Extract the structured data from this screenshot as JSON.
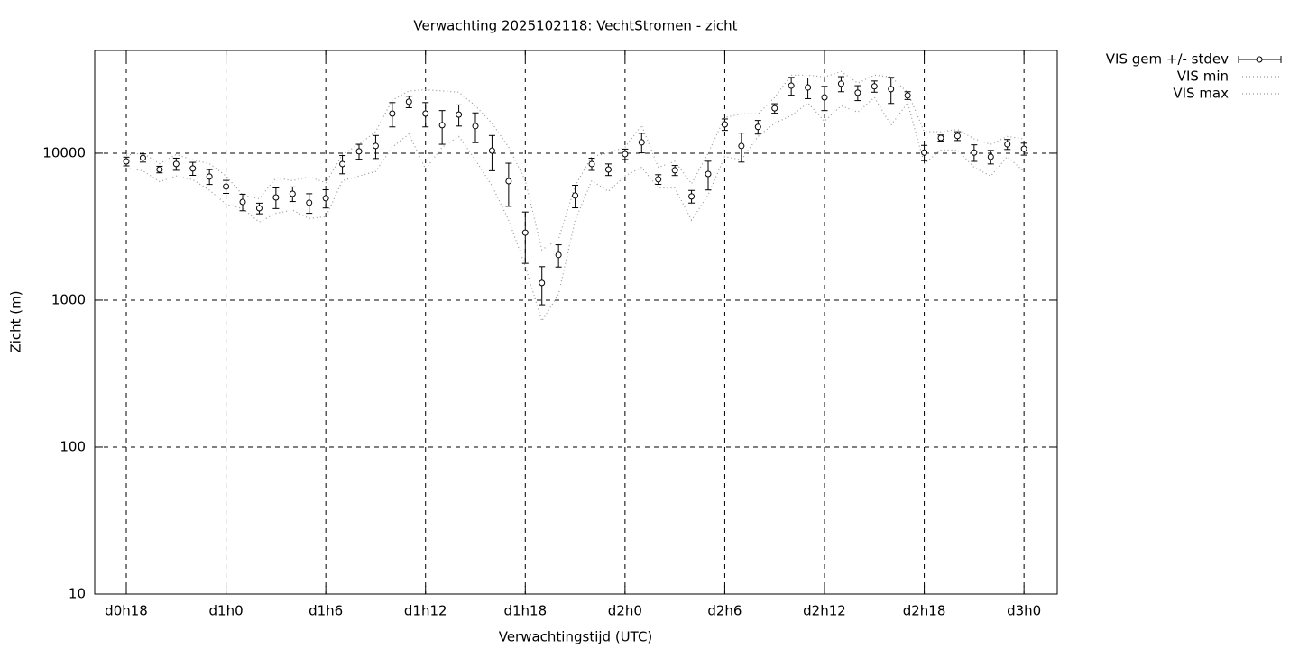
{
  "chart_data": {
    "type": "errorbar",
    "title": "Verwachting 2025102118: VechtStromen - zicht",
    "xlabel": "Verwachtingstijd (UTC)",
    "ylabel": "Zicht (m)",
    "x": [
      18,
      19,
      20,
      21,
      22,
      23,
      24,
      25,
      26,
      27,
      28,
      29,
      30,
      31,
      32,
      33,
      34,
      35,
      36,
      37,
      38,
      39,
      40,
      41,
      42,
      43,
      44,
      45,
      46,
      47,
      48,
      49,
      50,
      51,
      52,
      53,
      54,
      55,
      56,
      57,
      58,
      59,
      60,
      61,
      62,
      63,
      64,
      65,
      66,
      67,
      68,
      69,
      70,
      71,
      72
    ],
    "series": [
      {
        "name": "VIS gem +/- stdev",
        "color": "#000000",
        "values": [
          8800,
          9300,
          7750,
          8450,
          7870,
          6930,
          5930,
          4660,
          4220,
          5000,
          5290,
          4600,
          4940,
          8440,
          10300,
          11200,
          18600,
          22400,
          18600,
          15500,
          18300,
          15300,
          10400,
          6450,
          2880,
          1310,
          2030,
          5150,
          8440,
          7750,
          9860,
          11850,
          6640,
          7650,
          5080,
          7220,
          15700,
          11200,
          15100,
          20200,
          28800,
          28000,
          24000,
          29700,
          25800,
          28500,
          27300,
          24700,
          10100,
          12700,
          13100,
          10100,
          9450,
          11500,
          10700
        ],
        "errors": [
          600,
          600,
          400,
          800,
          800,
          800,
          600,
          600,
          350,
          800,
          600,
          700,
          700,
          1200,
          1200,
          2000,
          3500,
          2000,
          3500,
          4000,
          3000,
          3500,
          2800,
          2100,
          1100,
          380,
          350,
          900,
          800,
          700,
          800,
          1800,
          500,
          600,
          500,
          1600,
          1400,
          2500,
          1600,
          1500,
          4000,
          4500,
          4500,
          3500,
          3000,
          2500,
          5500,
          1500,
          1200,
          600,
          900,
          1300,
          1000,
          900,
          1000
        ]
      },
      {
        "name": "VIS min",
        "color": "#999999",
        "values": [
          7900,
          7600,
          6400,
          7000,
          6600,
          5600,
          4500,
          4200,
          3400,
          3900,
          4100,
          3600,
          3700,
          6500,
          7000,
          7500,
          11000,
          13500,
          7800,
          11000,
          13000,
          9000,
          6000,
          3500,
          1700,
          720,
          1100,
          3500,
          6500,
          5500,
          7000,
          8000,
          5800,
          5800,
          3500,
          5200,
          9500,
          9000,
          13000,
          16000,
          18000,
          22000,
          16500,
          21000,
          19000,
          24000,
          15500,
          22000,
          8500,
          10500,
          10500,
          8000,
          7000,
          9500,
          7500
        ]
      },
      {
        "name": "VIS max",
        "color": "#999999",
        "values": [
          9700,
          10000,
          8500,
          9800,
          9000,
          8500,
          7000,
          5200,
          4900,
          6800,
          6500,
          6900,
          6300,
          9800,
          11500,
          14000,
          23000,
          26500,
          27000,
          26500,
          26000,
          21000,
          16000,
          11000,
          6500,
          2200,
          2600,
          6000,
          9500,
          10000,
          11000,
          15500,
          8000,
          8800,
          6200,
          10000,
          17500,
          18500,
          18500,
          24000,
          34000,
          34000,
          33000,
          36000,
          30000,
          34000,
          33000,
          26000,
          14000,
          14000,
          14500,
          12500,
          11500,
          13000,
          12500
        ]
      }
    ],
    "xlim": [
      16.1,
      74
    ],
    "xticks": [
      {
        "value": 18,
        "label": "d0h18"
      },
      {
        "value": 24,
        "label": "d1h0"
      },
      {
        "value": 30,
        "label": "d1h6"
      },
      {
        "value": 36,
        "label": "d1h12"
      },
      {
        "value": 42,
        "label": "d1h18"
      },
      {
        "value": 48,
        "label": "d2h0"
      },
      {
        "value": 54,
        "label": "d2h6"
      },
      {
        "value": 60,
        "label": "d2h12"
      },
      {
        "value": 66,
        "label": "d2h18"
      },
      {
        "value": 72,
        "label": "d3h0"
      }
    ],
    "ylim": [
      10,
      50000
    ],
    "yticks": [
      10,
      100,
      1000,
      10000
    ],
    "log_y": true,
    "grid": true
  }
}
